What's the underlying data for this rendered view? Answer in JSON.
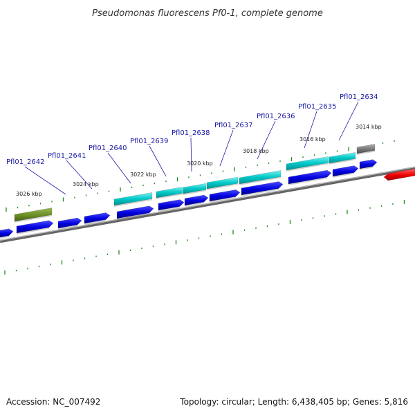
{
  "title": "Pseudomonas fluorescens Pf0-1, complete genome",
  "kbp_labels": [
    "3026 kbp",
    "3024 kbp",
    "3022 kbp",
    "3020 kbp",
    "3018 kbp",
    "3016 kbp",
    "3014 kbp"
  ],
  "gene_labels": [
    "Pfl01_2642",
    "Pfl01_2641",
    "Pfl01_2640",
    "Pfl01_2639",
    "Pfl01_2638",
    "Pfl01_2637",
    "Pfl01_2636",
    "Pfl01_2635",
    "Pfl01_2634"
  ],
  "footer": {
    "accession": "Accession: NC_007492",
    "stats": "Topology: circular; Length: 6,438,405 bp; Genes: 5,816"
  },
  "colors": {
    "cds_forward": "#0000dd",
    "cds_highlight": "#00c8c8",
    "gene_olive": "#6b8e23",
    "gene_gray": "#777777",
    "gene_red": "#ee0000",
    "tick": "#1a8a1a",
    "backbone": "#888888",
    "label_blue": "#1a1aa6"
  }
}
